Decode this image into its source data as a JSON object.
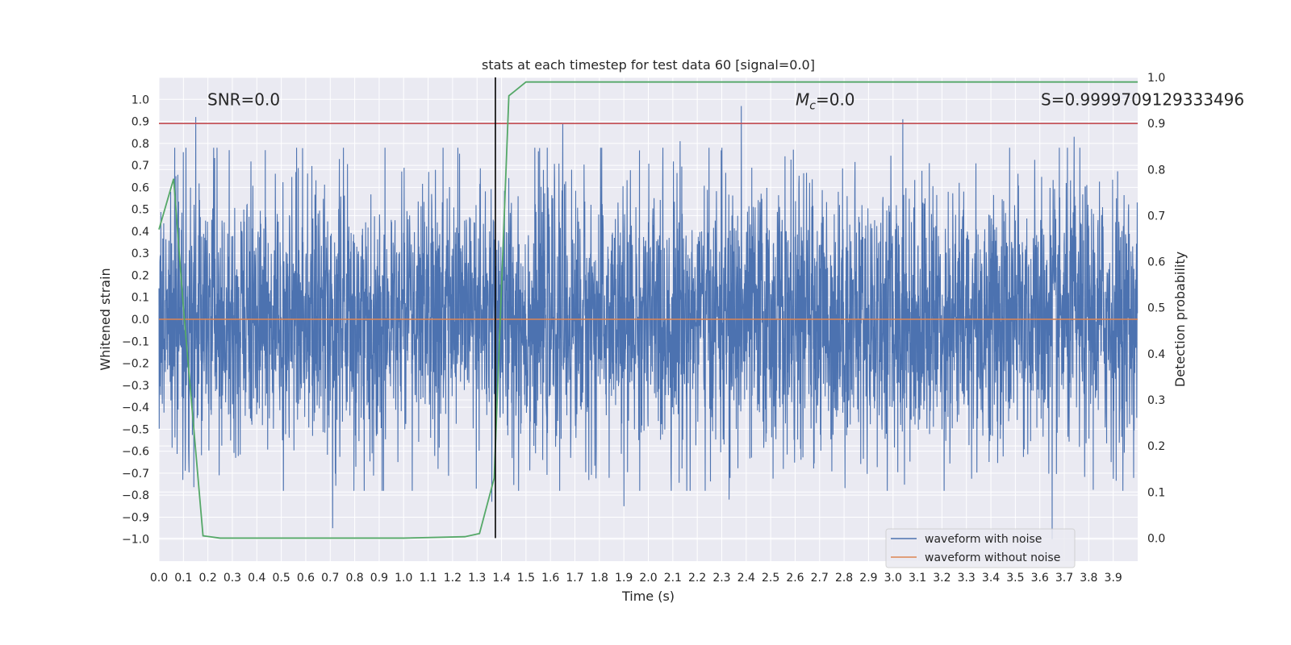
{
  "chart_data": {
    "type": "line",
    "title": "stats at each timestep for test data 60 [signal=0.0]",
    "xlabel": "Time (s)",
    "ylabel": "Whitened strain",
    "y2label": "Detection probability",
    "xlim": [
      0.0,
      4.0
    ],
    "ylim": [
      -1.1,
      1.1
    ],
    "y2lim": [
      -0.05,
      1.0
    ],
    "xticks": [
      0.0,
      0.1,
      0.2,
      0.3,
      0.4,
      0.5,
      0.6,
      0.7,
      0.8,
      0.9,
      1.0,
      1.1,
      1.2,
      1.3,
      1.4,
      1.5,
      1.6,
      1.7,
      1.8,
      1.9,
      2.0,
      2.1,
      2.2,
      2.3,
      2.4,
      2.5,
      2.6,
      2.7,
      2.8,
      2.9,
      3.0,
      3.1,
      3.2,
      3.3,
      3.4,
      3.5,
      3.6,
      3.7,
      3.8,
      3.9
    ],
    "yticks": [
      -1.0,
      -0.9,
      -0.8,
      -0.7,
      -0.6,
      -0.5,
      -0.4,
      -0.3,
      -0.2,
      -0.1,
      0.0,
      0.1,
      0.2,
      0.3,
      0.4,
      0.5,
      0.6,
      0.7,
      0.8,
      0.9,
      1.0
    ],
    "y2ticks": [
      0.0,
      0.1,
      0.2,
      0.3,
      0.4,
      0.5,
      0.6,
      0.7,
      0.8,
      0.9,
      1.0
    ],
    "grid": true,
    "legend_position": "lower-right",
    "colors": {
      "background": "#eaeaf2",
      "grid": "#ffffff",
      "noise_wave": "#4c72b0",
      "clean_wave": "#dd8452",
      "probability": "#55a868",
      "threshold": "#c44e52",
      "marker": "#000000"
    },
    "series": [
      {
        "name": "waveform with noise",
        "axis": "left",
        "description_values": "dense whitened noise, mostly within ±0.6, peaks near 0.92 at 0.15 s, 0.97 at 2.38 s, 0.91 at 3.04 s, 0.83 at 3.74 s, troughs near -0.95 at 0.71 s, -1.0 at 3.65 s",
        "amplitude": 0.3,
        "peaks": [
          [
            0.15,
            0.92
          ],
          [
            0.1,
            0.76
          ],
          [
            0.71,
            -0.95
          ],
          [
            1.36,
            -0.83
          ],
          [
            1.65,
            0.89
          ],
          [
            2.13,
            0.81
          ],
          [
            2.38,
            0.97
          ],
          [
            3.04,
            0.91
          ],
          [
            3.74,
            0.83
          ],
          [
            3.65,
            -1.0
          ],
          [
            1.9,
            -0.85
          ],
          [
            2.33,
            -0.82
          ]
        ]
      },
      {
        "name": "waveform without noise",
        "axis": "left",
        "x": [
          0.0,
          4.0
        ],
        "values": [
          0.0,
          0.0
        ]
      },
      {
        "name": "detection probability",
        "axis": "right",
        "x": [
          0.0,
          0.06,
          0.1,
          0.18,
          0.25,
          0.5,
          0.75,
          1.0,
          1.25,
          1.31,
          1.37,
          1.43,
          1.5,
          1.75,
          2.0,
          2.5,
          3.0,
          3.5,
          4.0
        ],
        "values": [
          0.67,
          0.78,
          0.5,
          0.005,
          0.0,
          0.0,
          0.0,
          0.0,
          0.003,
          0.01,
          0.13,
          0.96,
          0.99,
          0.99,
          0.99,
          0.99,
          0.99,
          0.99,
          0.99
        ]
      }
    ],
    "threshold_y2": 0.9,
    "marker_x": 1.375,
    "annotations": {
      "snr": "SNR=0.0",
      "mc_symbol": "M",
      "mc_sub": "c",
      "mc_value": "=0.0",
      "s": "S=0.9999709129333496"
    }
  }
}
